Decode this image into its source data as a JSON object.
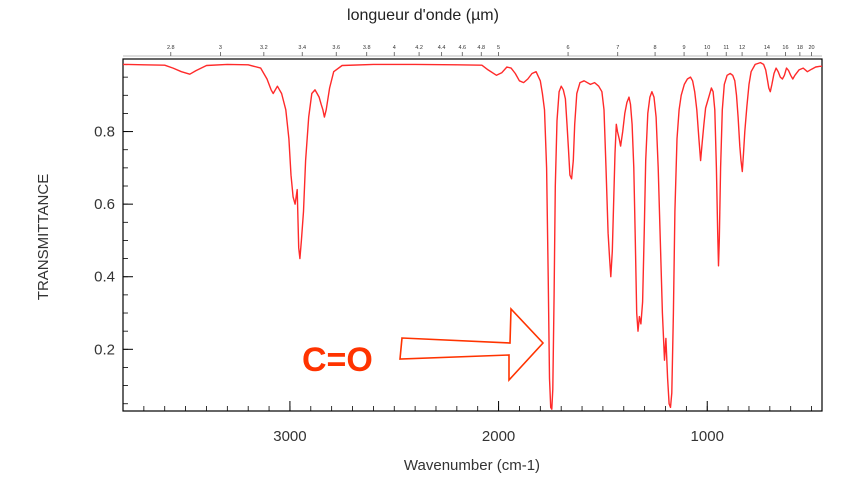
{
  "chart_data": {
    "type": "line",
    "title": "longueur d'onde (µm)",
    "xlabel": "Wavenumber (cm-1)",
    "ylabel": "TRANSMITTANCE",
    "xlim": [
      3800,
      450
    ],
    "ylim": [
      0.03,
      1.0
    ],
    "x_ticks": [
      {
        "value": 3000,
        "label": "3000"
      },
      {
        "value": 2000,
        "label": "2000"
      },
      {
        "value": 1000,
        "label": "1000"
      }
    ],
    "y_ticks": [
      {
        "value": 0.2,
        "label": "0.2"
      },
      {
        "value": 0.4,
        "label": "0.4"
      },
      {
        "value": 0.6,
        "label": "0.6"
      },
      {
        "value": 0.8,
        "label": "0.8"
      }
    ],
    "top_axis_ticks": [
      {
        "wavenumber": 3571,
        "label": "2.8"
      },
      {
        "wavenumber": 3333,
        "label": "3"
      },
      {
        "wavenumber": 3125,
        "label": "3.2"
      },
      {
        "wavenumber": 2941,
        "label": "3.4"
      },
      {
        "wavenumber": 2778,
        "label": "3.6"
      },
      {
        "wavenumber": 2632,
        "label": "3.8"
      },
      {
        "wavenumber": 2500,
        "label": "4"
      },
      {
        "wavenumber": 2381,
        "label": "4.2"
      },
      {
        "wavenumber": 2273,
        "label": "4.4"
      },
      {
        "wavenumber": 2174,
        "label": "4.6"
      },
      {
        "wavenumber": 2083,
        "label": "4.8"
      },
      {
        "wavenumber": 2000,
        "label": "5"
      },
      {
        "wavenumber": 1667,
        "label": "6"
      },
      {
        "wavenumber": 1429,
        "label": "7"
      },
      {
        "wavenumber": 1250,
        "label": "8"
      },
      {
        "wavenumber": 1111,
        "label": "9"
      },
      {
        "wavenumber": 1000,
        "label": "10"
      },
      {
        "wavenumber": 909,
        "label": "11"
      },
      {
        "wavenumber": 833,
        "label": "12"
      },
      {
        "wavenumber": 714,
        "label": "14"
      },
      {
        "wavenumber": 625,
        "label": "16"
      },
      {
        "wavenumber": 556,
        "label": "18"
      },
      {
        "wavenumber": 500,
        "label": "20"
      }
    ],
    "series": [
      {
        "color": "#ff2a2a",
        "points": [
          [
            3800,
            0.985
          ],
          [
            3700,
            0.984
          ],
          [
            3600,
            0.983
          ],
          [
            3560,
            0.975
          ],
          [
            3520,
            0.965
          ],
          [
            3480,
            0.958
          ],
          [
            3450,
            0.968
          ],
          [
            3400,
            0.982
          ],
          [
            3300,
            0.985
          ],
          [
            3200,
            0.984
          ],
          [
            3140,
            0.975
          ],
          [
            3110,
            0.945
          ],
          [
            3090,
            0.915
          ],
          [
            3080,
            0.905
          ],
          [
            3060,
            0.925
          ],
          [
            3040,
            0.905
          ],
          [
            3020,
            0.86
          ],
          [
            3005,
            0.78
          ],
          [
            2995,
            0.68
          ],
          [
            2985,
            0.62
          ],
          [
            2975,
            0.6
          ],
          [
            2965,
            0.64
          ],
          [
            2958,
            0.48
          ],
          [
            2952,
            0.45
          ],
          [
            2945,
            0.5
          ],
          [
            2935,
            0.58
          ],
          [
            2925,
            0.72
          ],
          [
            2910,
            0.84
          ],
          [
            2895,
            0.905
          ],
          [
            2880,
            0.915
          ],
          [
            2870,
            0.905
          ],
          [
            2860,
            0.895
          ],
          [
            2850,
            0.875
          ],
          [
            2842,
            0.86
          ],
          [
            2835,
            0.84
          ],
          [
            2826,
            0.86
          ],
          [
            2810,
            0.92
          ],
          [
            2790,
            0.965
          ],
          [
            2750,
            0.982
          ],
          [
            2600,
            0.985
          ],
          [
            2400,
            0.985
          ],
          [
            2200,
            0.984
          ],
          [
            2080,
            0.983
          ],
          [
            2050,
            0.97
          ],
          [
            2010,
            0.955
          ],
          [
            1985,
            0.962
          ],
          [
            1960,
            0.978
          ],
          [
            1940,
            0.975
          ],
          [
            1920,
            0.96
          ],
          [
            1900,
            0.94
          ],
          [
            1880,
            0.935
          ],
          [
            1860,
            0.945
          ],
          [
            1840,
            0.96
          ],
          [
            1820,
            0.965
          ],
          [
            1800,
            0.94
          ],
          [
            1790,
            0.905
          ],
          [
            1780,
            0.86
          ],
          [
            1770,
            0.7
          ],
          [
            1762,
            0.4
          ],
          [
            1756,
            0.12
          ],
          [
            1750,
            0.04
          ],
          [
            1745,
            0.035
          ],
          [
            1740,
            0.09
          ],
          [
            1734,
            0.35
          ],
          [
            1728,
            0.65
          ],
          [
            1720,
            0.83
          ],
          [
            1710,
            0.91
          ],
          [
            1700,
            0.925
          ],
          [
            1690,
            0.915
          ],
          [
            1680,
            0.89
          ],
          [
            1672,
            0.82
          ],
          [
            1665,
            0.75
          ],
          [
            1658,
            0.68
          ],
          [
            1650,
            0.67
          ],
          [
            1642,
            0.72
          ],
          [
            1635,
            0.82
          ],
          [
            1625,
            0.905
          ],
          [
            1610,
            0.935
          ],
          [
            1590,
            0.94
          ],
          [
            1560,
            0.93
          ],
          [
            1540,
            0.935
          ],
          [
            1520,
            0.925
          ],
          [
            1505,
            0.91
          ],
          [
            1495,
            0.86
          ],
          [
            1485,
            0.7
          ],
          [
            1475,
            0.52
          ],
          [
            1468,
            0.45
          ],
          [
            1462,
            0.4
          ],
          [
            1455,
            0.47
          ],
          [
            1448,
            0.62
          ],
          [
            1442,
            0.74
          ],
          [
            1436,
            0.82
          ],
          [
            1430,
            0.8
          ],
          [
            1422,
            0.78
          ],
          [
            1415,
            0.76
          ],
          [
            1405,
            0.8
          ],
          [
            1395,
            0.85
          ],
          [
            1385,
            0.88
          ],
          [
            1375,
            0.895
          ],
          [
            1368,
            0.875
          ],
          [
            1360,
            0.82
          ],
          [
            1352,
            0.7
          ],
          [
            1345,
            0.5
          ],
          [
            1338,
            0.3
          ],
          [
            1332,
            0.25
          ],
          [
            1325,
            0.29
          ],
          [
            1318,
            0.27
          ],
          [
            1310,
            0.33
          ],
          [
            1302,
            0.52
          ],
          [
            1295,
            0.72
          ],
          [
            1285,
            0.85
          ],
          [
            1275,
            0.895
          ],
          [
            1265,
            0.91
          ],
          [
            1255,
            0.895
          ],
          [
            1245,
            0.84
          ],
          [
            1235,
            0.7
          ],
          [
            1225,
            0.5
          ],
          [
            1215,
            0.3
          ],
          [
            1205,
            0.17
          ],
          [
            1198,
            0.23
          ],
          [
            1190,
            0.12
          ],
          [
            1183,
            0.05
          ],
          [
            1176,
            0.04
          ],
          [
            1170,
            0.08
          ],
          [
            1162,
            0.3
          ],
          [
            1155,
            0.58
          ],
          [
            1145,
            0.78
          ],
          [
            1135,
            0.86
          ],
          [
            1125,
            0.9
          ],
          [
            1110,
            0.93
          ],
          [
            1095,
            0.945
          ],
          [
            1080,
            0.95
          ],
          [
            1070,
            0.94
          ],
          [
            1060,
            0.91
          ],
          [
            1050,
            0.86
          ],
          [
            1040,
            0.78
          ],
          [
            1032,
            0.72
          ],
          [
            1024,
            0.77
          ],
          [
            1016,
            0.82
          ],
          [
            1008,
            0.865
          ],
          [
            1000,
            0.88
          ],
          [
            990,
            0.9
          ],
          [
            980,
            0.92
          ],
          [
            972,
            0.91
          ],
          [
            964,
            0.86
          ],
          [
            956,
            0.7
          ],
          [
            950,
            0.52
          ],
          [
            946,
            0.43
          ],
          [
            942,
            0.5
          ],
          [
            936,
            0.7
          ],
          [
            928,
            0.86
          ],
          [
            918,
            0.93
          ],
          [
            905,
            0.955
          ],
          [
            890,
            0.96
          ],
          [
            878,
            0.955
          ],
          [
            868,
            0.94
          ],
          [
            860,
            0.9
          ],
          [
            852,
            0.84
          ],
          [
            844,
            0.76
          ],
          [
            838,
            0.72
          ],
          [
            832,
            0.69
          ],
          [
            826,
            0.74
          ],
          [
            820,
            0.8
          ],
          [
            810,
            0.87
          ],
          [
            800,
            0.93
          ],
          [
            790,
            0.965
          ],
          [
            770,
            0.985
          ],
          [
            745,
            0.99
          ],
          [
            730,
            0.985
          ],
          [
            720,
            0.97
          ],
          [
            712,
            0.945
          ],
          [
            705,
            0.92
          ],
          [
            698,
            0.91
          ],
          [
            690,
            0.93
          ],
          [
            680,
            0.96
          ],
          [
            670,
            0.975
          ],
          [
            660,
            0.965
          ],
          [
            650,
            0.95
          ],
          [
            640,
            0.945
          ],
          [
            630,
            0.955
          ],
          [
            620,
            0.975
          ],
          [
            610,
            0.968
          ],
          [
            600,
            0.955
          ],
          [
            590,
            0.945
          ],
          [
            580,
            0.955
          ],
          [
            560,
            0.97
          ],
          [
            540,
            0.975
          ],
          [
            520,
            0.965
          ],
          [
            500,
            0.972
          ],
          [
            480,
            0.978
          ],
          [
            460,
            0.98
          ],
          [
            450,
            0.98
          ]
        ]
      }
    ],
    "annotation": {
      "text": "C=O",
      "color": "#ff3300",
      "points_to_wavenumber": 1750
    }
  }
}
